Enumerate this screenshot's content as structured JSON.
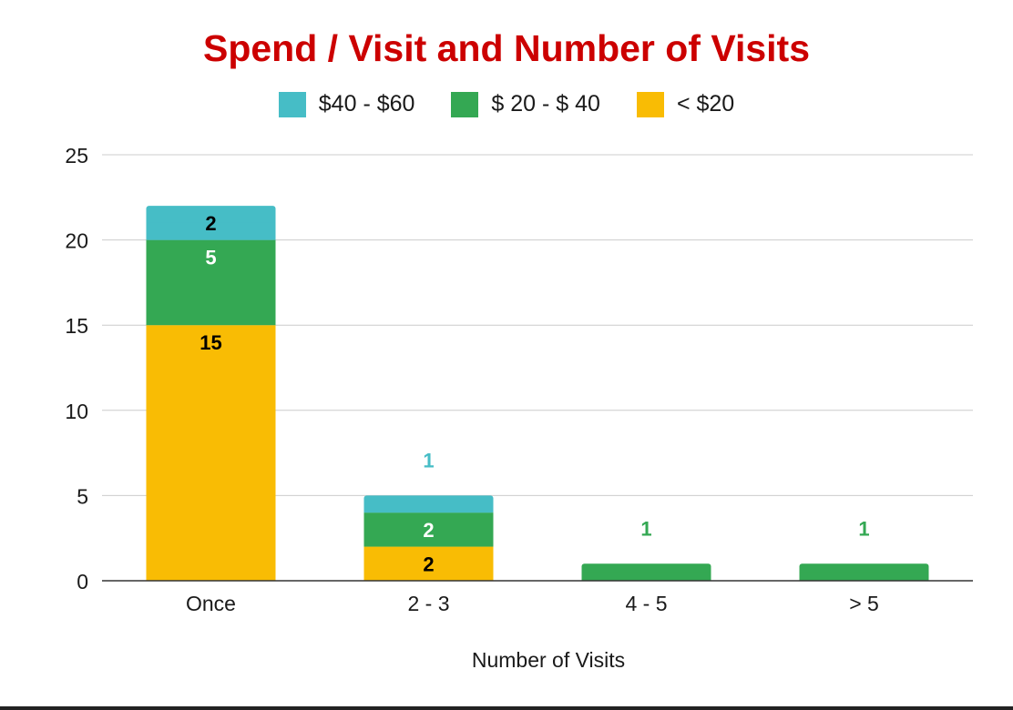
{
  "chart_data": {
    "type": "bar",
    "stacked": true,
    "title": "Spend / Visit and Number of Visits",
    "xlabel": "Number of Visits",
    "ylabel": "",
    "categories": [
      "Once",
      "2 - 3",
      "4 - 5",
      "> 5"
    ],
    "ylim": [
      0,
      25
    ],
    "yticks": [
      0,
      5,
      10,
      15,
      20,
      25
    ],
    "grid": true,
    "legend_position": "top",
    "title_color": "#cc0000",
    "series": [
      {
        "name": "< $20",
        "color": "#f9bc04",
        "values": [
          15,
          2,
          0,
          0
        ],
        "label_color": "#000000",
        "labels": [
          "15",
          "2",
          "",
          ""
        ]
      },
      {
        "name": "$ 20 - $ 40",
        "color": "#34a853",
        "values": [
          5,
          2,
          1,
          1
        ],
        "label_color": "#ffffff",
        "labels": [
          "5",
          "2",
          "1",
          "1"
        ]
      },
      {
        "name": "$40 - $60",
        "color": "#46bdc6",
        "values": [
          2,
          1,
          0,
          0
        ],
        "label_color": "#000000",
        "labels": [
          "2",
          "1",
          "",
          ""
        ]
      }
    ],
    "legend_order": [
      "$40 - $60",
      "$ 20 - $ 40",
      "< $20"
    ]
  }
}
